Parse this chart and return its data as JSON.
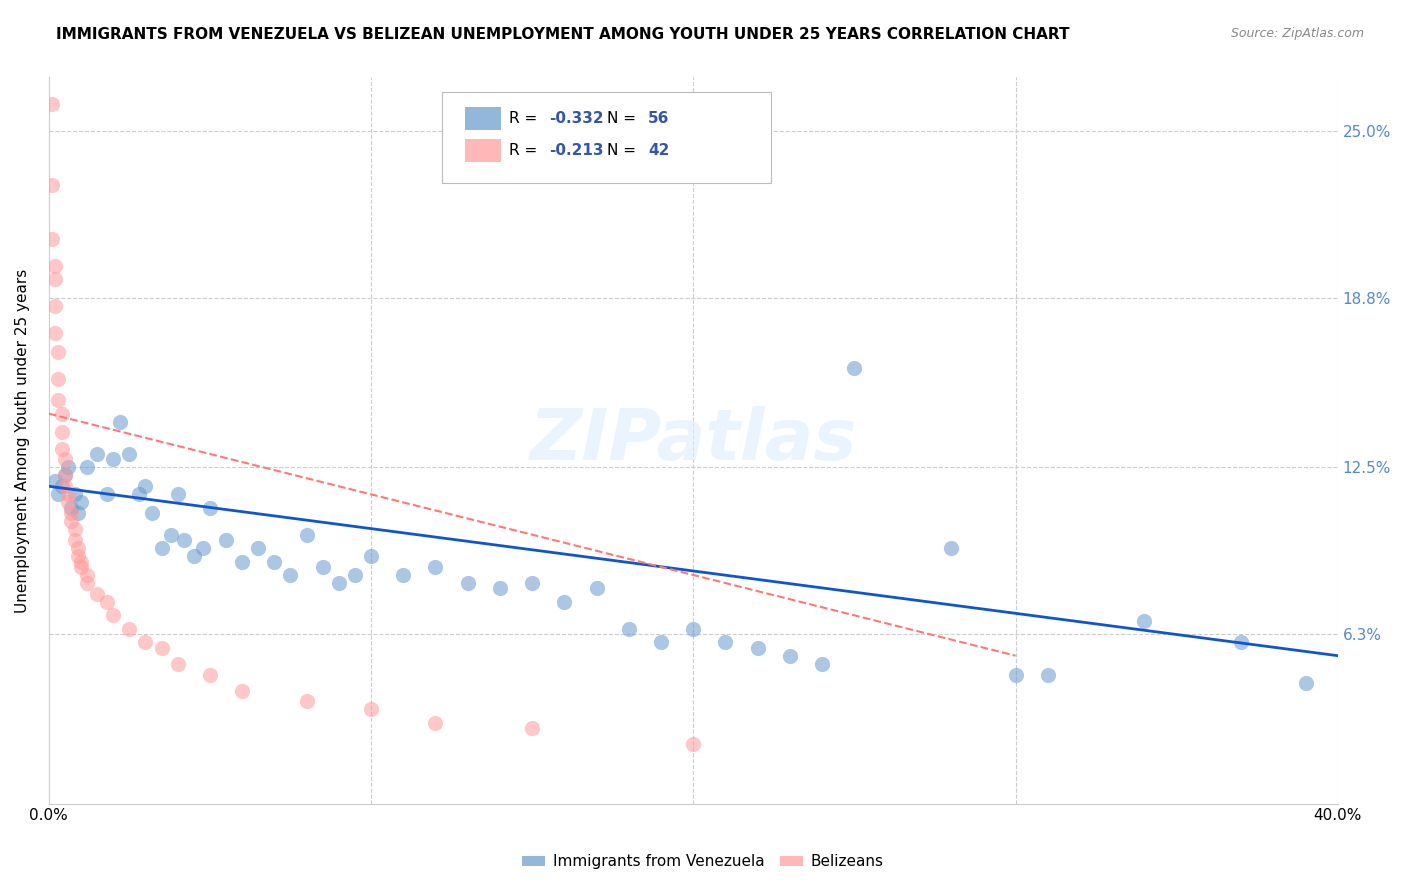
{
  "title": "IMMIGRANTS FROM VENEZUELA VS BELIZEAN UNEMPLOYMENT AMONG YOUTH UNDER 25 YEARS CORRELATION CHART",
  "source": "Source: ZipAtlas.com",
  "ylabel": "Unemployment Among Youth under 25 years",
  "yticks": [
    0.0,
    0.063,
    0.125,
    0.188,
    0.25
  ],
  "ytick_labels": [
    "",
    "6.3%",
    "12.5%",
    "18.8%",
    "25.0%"
  ],
  "xmin": 0.0,
  "xmax": 0.4,
  "ymin": 0.0,
  "ymax": 0.27,
  "r_blue": -0.332,
  "n_blue": 56,
  "r_pink": -0.213,
  "n_pink": 42,
  "legend_label_blue": "Immigrants from Venezuela",
  "legend_label_pink": "Belizeans",
  "watermark": "ZIPatlas",
  "blue_color": "#6699CC",
  "pink_color": "#FF9999",
  "blue_line_color": "#1155CC",
  "pink_line_color": "#FF7777",
  "blue_scatter": [
    [
      0.002,
      0.12
    ],
    [
      0.003,
      0.115
    ],
    [
      0.004,
      0.118
    ],
    [
      0.005,
      0.122
    ],
    [
      0.006,
      0.125
    ],
    [
      0.007,
      0.11
    ],
    [
      0.008,
      0.115
    ],
    [
      0.009,
      0.108
    ],
    [
      0.01,
      0.112
    ],
    [
      0.012,
      0.125
    ],
    [
      0.015,
      0.13
    ],
    [
      0.018,
      0.115
    ],
    [
      0.02,
      0.128
    ],
    [
      0.022,
      0.142
    ],
    [
      0.025,
      0.13
    ],
    [
      0.028,
      0.115
    ],
    [
      0.03,
      0.118
    ],
    [
      0.032,
      0.108
    ],
    [
      0.035,
      0.095
    ],
    [
      0.038,
      0.1
    ],
    [
      0.04,
      0.115
    ],
    [
      0.042,
      0.098
    ],
    [
      0.045,
      0.092
    ],
    [
      0.048,
      0.095
    ],
    [
      0.05,
      0.11
    ],
    [
      0.055,
      0.098
    ],
    [
      0.06,
      0.09
    ],
    [
      0.065,
      0.095
    ],
    [
      0.07,
      0.09
    ],
    [
      0.075,
      0.085
    ],
    [
      0.08,
      0.1
    ],
    [
      0.085,
      0.088
    ],
    [
      0.09,
      0.082
    ],
    [
      0.095,
      0.085
    ],
    [
      0.1,
      0.092
    ],
    [
      0.11,
      0.085
    ],
    [
      0.12,
      0.088
    ],
    [
      0.13,
      0.082
    ],
    [
      0.14,
      0.08
    ],
    [
      0.15,
      0.082
    ],
    [
      0.16,
      0.075
    ],
    [
      0.17,
      0.08
    ],
    [
      0.18,
      0.065
    ],
    [
      0.19,
      0.06
    ],
    [
      0.2,
      0.065
    ],
    [
      0.21,
      0.06
    ],
    [
      0.22,
      0.058
    ],
    [
      0.23,
      0.055
    ],
    [
      0.24,
      0.052
    ],
    [
      0.25,
      0.162
    ],
    [
      0.28,
      0.095
    ],
    [
      0.3,
      0.048
    ],
    [
      0.31,
      0.048
    ],
    [
      0.34,
      0.068
    ],
    [
      0.37,
      0.06
    ],
    [
      0.39,
      0.045
    ]
  ],
  "pink_scatter": [
    [
      0.001,
      0.26
    ],
    [
      0.001,
      0.23
    ],
    [
      0.001,
      0.21
    ],
    [
      0.002,
      0.2
    ],
    [
      0.002,
      0.195
    ],
    [
      0.002,
      0.185
    ],
    [
      0.002,
      0.175
    ],
    [
      0.003,
      0.168
    ],
    [
      0.003,
      0.158
    ],
    [
      0.003,
      0.15
    ],
    [
      0.004,
      0.145
    ],
    [
      0.004,
      0.138
    ],
    [
      0.004,
      0.132
    ],
    [
      0.005,
      0.128
    ],
    [
      0.005,
      0.122
    ],
    [
      0.005,
      0.118
    ],
    [
      0.006,
      0.115
    ],
    [
      0.006,
      0.112
    ],
    [
      0.007,
      0.108
    ],
    [
      0.007,
      0.105
    ],
    [
      0.008,
      0.102
    ],
    [
      0.008,
      0.098
    ],
    [
      0.009,
      0.095
    ],
    [
      0.009,
      0.092
    ],
    [
      0.01,
      0.09
    ],
    [
      0.01,
      0.088
    ],
    [
      0.012,
      0.085
    ],
    [
      0.012,
      0.082
    ],
    [
      0.015,
      0.078
    ],
    [
      0.018,
      0.075
    ],
    [
      0.02,
      0.07
    ],
    [
      0.025,
      0.065
    ],
    [
      0.03,
      0.06
    ],
    [
      0.035,
      0.058
    ],
    [
      0.04,
      0.052
    ],
    [
      0.05,
      0.048
    ],
    [
      0.06,
      0.042
    ],
    [
      0.08,
      0.038
    ],
    [
      0.1,
      0.035
    ],
    [
      0.12,
      0.03
    ],
    [
      0.15,
      0.028
    ],
    [
      0.2,
      0.022
    ]
  ]
}
